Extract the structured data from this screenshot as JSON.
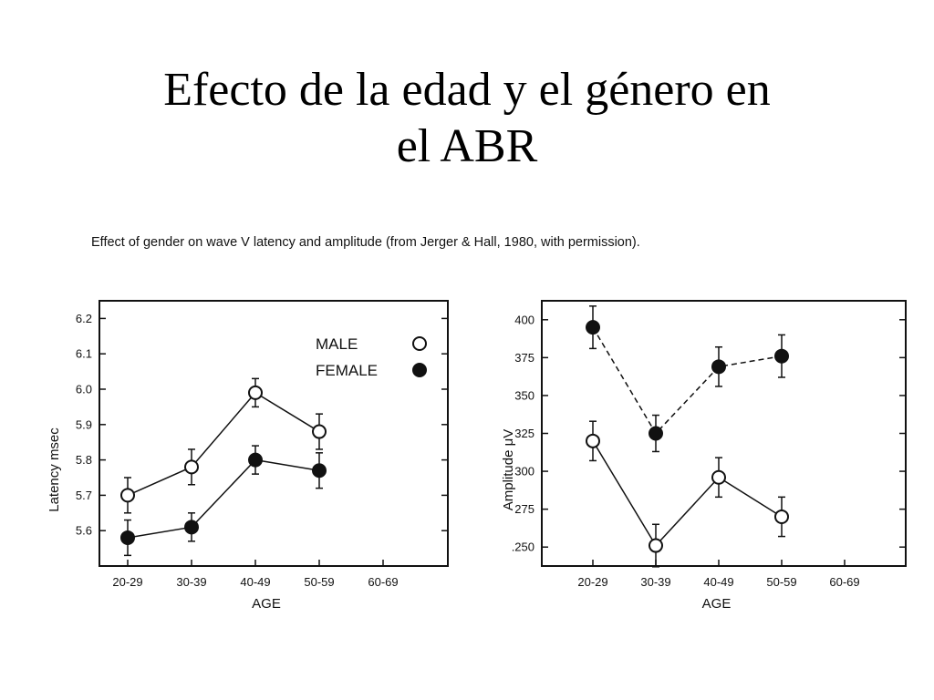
{
  "slide": {
    "title_line1": "Efecto de la edad y el género en",
    "title_line2": "el ABR",
    "caption": "Effect of gender on wave V latency and amplitude (from Jerger & Hall, 1980, with permission)."
  },
  "chart_data": [
    {
      "type": "scatter",
      "style": "line-with-markers-and-error-bars",
      "xlabel": "AGE",
      "ylabel": "Latency msec",
      "categories": [
        "20-29",
        "30-39",
        "40-49",
        "50-59",
        "60-69"
      ],
      "ylim": [
        5.5,
        6.25
      ],
      "yticks": [
        5.6,
        5.7,
        5.8,
        5.9,
        6.0,
        6.1,
        6.2
      ],
      "ytick_labels": [
        "5.6",
        "5.7",
        "5.8",
        "5.9",
        "6.0",
        "6.1",
        "6.2"
      ],
      "grid": false,
      "legend": {
        "placement": "top-right",
        "entries": [
          "MALE",
          "FEMALE"
        ]
      },
      "series": [
        {
          "name": "MALE",
          "marker": "open-circle",
          "line": "solid",
          "values": [
            5.7,
            5.78,
            5.99,
            5.88,
            null
          ],
          "error": [
            0.05,
            0.05,
            0.04,
            0.05,
            null
          ]
        },
        {
          "name": "FEMALE",
          "marker": "filled-circle",
          "line": "solid",
          "values": [
            5.58,
            5.61,
            5.8,
            5.77,
            null
          ],
          "error": [
            0.05,
            0.04,
            0.04,
            0.05,
            null
          ]
        }
      ],
      "colors": {
        "ink": "#111111",
        "background": "#ffffff"
      }
    },
    {
      "type": "scatter",
      "style": "line-with-markers-and-error-bars",
      "xlabel": "AGE",
      "ylabel": "Amplitude μV",
      "categories": [
        "20-29",
        "30-39",
        "40-49",
        "50-59",
        "60-69"
      ],
      "ylim": [
        237.5,
        412.5
      ],
      "yticks": [
        250,
        275,
        300,
        325,
        350,
        375,
        400
      ],
      "ytick_labels": [
        ".250",
        "275",
        "300",
        "325",
        "350",
        "375",
        "400"
      ],
      "grid": false,
      "series": [
        {
          "name": "MALE",
          "marker": "open-circle",
          "line": "solid",
          "values": [
            320,
            251,
            296,
            270,
            null
          ],
          "error": [
            13,
            14,
            13,
            13,
            null
          ]
        },
        {
          "name": "FEMALE",
          "marker": "filled-circle",
          "line": "dashed",
          "values": [
            395,
            325,
            369,
            376,
            null
          ],
          "error": [
            14,
            12,
            13,
            14,
            null
          ]
        }
      ],
      "colors": {
        "ink": "#111111",
        "background": "#ffffff"
      }
    }
  ]
}
